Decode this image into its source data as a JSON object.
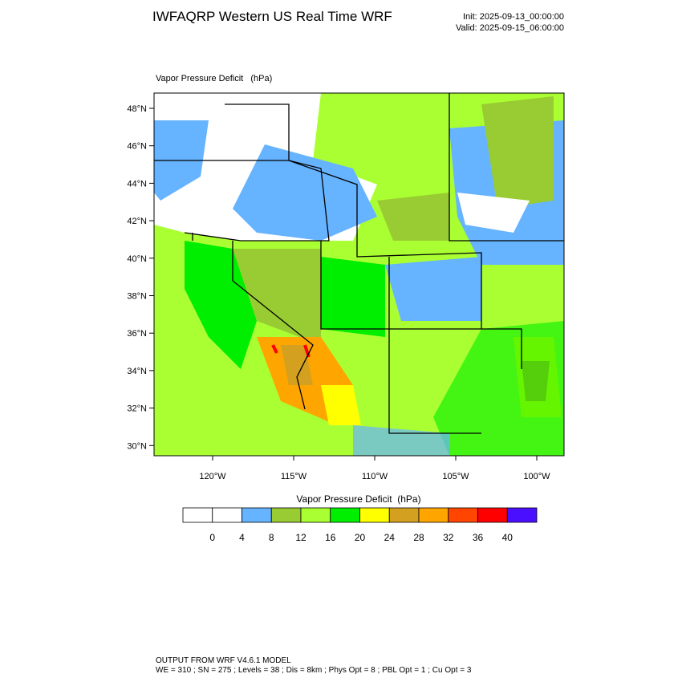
{
  "header": {
    "title": "IWFAQRP Western US Real Time WRF",
    "init": "Init: 2025-09-13_00:00:00",
    "valid": "Valid: 2025-09-15_06:00:00"
  },
  "map": {
    "subtitle": "Vapor Pressure Deficit   (hPa)",
    "lat_labels": [
      "48°N",
      "46°N",
      "44°N",
      "42°N",
      "40°N",
      "38°N",
      "36°N",
      "34°N",
      "32°N",
      "30°N"
    ],
    "lon_labels": [
      "120°W",
      "115°W",
      "110°W",
      "105°W",
      "100°W"
    ]
  },
  "colorbar": {
    "title": "Vapor Pressure Deficit  (hPa)",
    "labels": [
      "0",
      "4",
      "8",
      "12",
      "16",
      "20",
      "24",
      "28",
      "32",
      "36",
      "40"
    ],
    "colors": [
      "#ffffff",
      "#ffffff",
      "#66b3ff",
      "#99cc33",
      "#aaff33",
      "#00ee00",
      "#ffff00",
      "#d4a020",
      "#ffa500",
      "#ff4500",
      "#ff0000",
      "#4b0fff"
    ]
  },
  "footer": {
    "line1": "OUTPUT FROM WRF V4.6.1 MODEL",
    "line2": "WE = 310 ; SN = 275 ; Levels = 38 ; Dis = 8km ; Phys Opt = 8 ; PBL Opt = 1 ; Cu Opt = 3"
  }
}
